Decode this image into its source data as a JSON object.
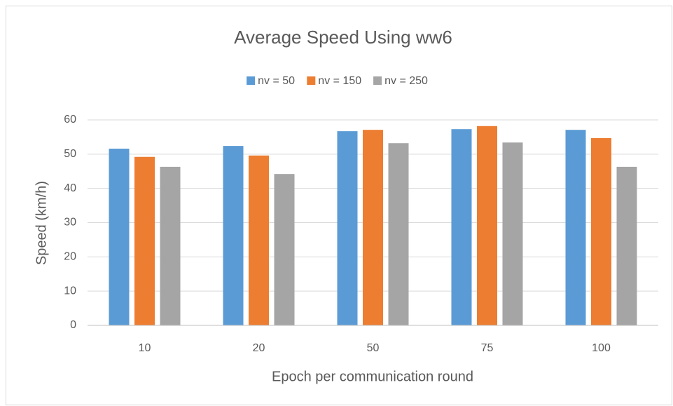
{
  "chart_data": {
    "type": "bar",
    "title": "Average Speed Using ww6",
    "x_label": "Epoch per communication round",
    "y_label": "Speed (km/h)",
    "categories": [
      "10",
      "20",
      "50",
      "75",
      "100"
    ],
    "series": [
      {
        "name": "nv = 50",
        "color": "#5b9bd5",
        "values": [
          51.6,
          52.4,
          56.7,
          57.3,
          57.1
        ]
      },
      {
        "name": "nv = 150",
        "color": "#ed7d31",
        "values": [
          49.2,
          49.6,
          57.1,
          58.2,
          54.7
        ]
      },
      {
        "name": "nv = 250",
        "color": "#a5a5a5",
        "values": [
          46.3,
          44.2,
          53.2,
          53.4,
          46.3
        ]
      }
    ],
    "ylim": [
      0,
      60
    ],
    "yticks": [
      0,
      10,
      20,
      30,
      40,
      50,
      60
    ],
    "grid": true,
    "legend": "top"
  }
}
